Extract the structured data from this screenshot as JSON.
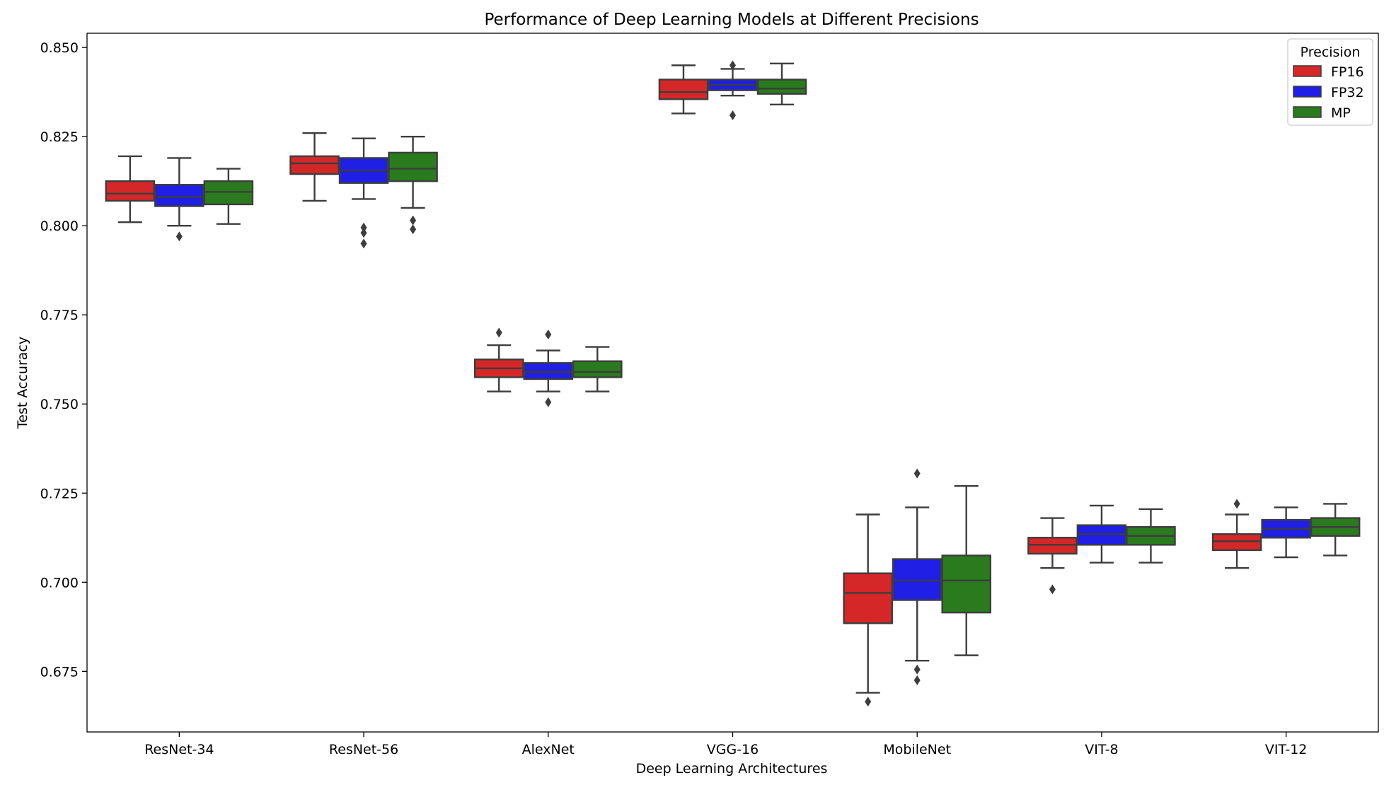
{
  "chart_data": {
    "type": "box",
    "title": "Performance of Deep Learning Models at Different Precisions",
    "xlabel": "Deep Learning Architectures",
    "ylabel": "Test Accuracy",
    "ylim": [
      0.658,
      0.854
    ],
    "yticks": [
      "0.675",
      "0.700",
      "0.725",
      "0.750",
      "0.775",
      "0.800",
      "0.825",
      "0.850"
    ],
    "categories": [
      "ResNet-34",
      "ResNet-56",
      "AlexNet",
      "VGG-16",
      "MobileNet",
      "VIT-8",
      "VIT-12"
    ],
    "legend": {
      "title": "Precision",
      "placement": "top-right",
      "entries": [
        "FP16",
        "FP32",
        "MP"
      ]
    },
    "series": [
      {
        "name": "FP16",
        "color": "#d62728",
        "boxes": [
          {
            "whislo": 0.801,
            "q1": 0.807,
            "med": 0.809,
            "q3": 0.8125,
            "whishi": 0.8195,
            "fliers": []
          },
          {
            "whislo": 0.807,
            "q1": 0.8145,
            "med": 0.8175,
            "q3": 0.8195,
            "whishi": 0.826,
            "fliers": []
          },
          {
            "whislo": 0.7535,
            "q1": 0.7575,
            "med": 0.76,
            "q3": 0.7625,
            "whishi": 0.7665,
            "fliers": [
              0.77
            ]
          },
          {
            "whislo": 0.8315,
            "q1": 0.8355,
            "med": 0.8375,
            "q3": 0.841,
            "whishi": 0.845,
            "fliers": []
          },
          {
            "whislo": 0.669,
            "q1": 0.6885,
            "med": 0.697,
            "q3": 0.7025,
            "whishi": 0.719,
            "fliers": [
              0.6665
            ]
          },
          {
            "whislo": 0.704,
            "q1": 0.708,
            "med": 0.7105,
            "q3": 0.7125,
            "whishi": 0.718,
            "fliers": [
              0.698
            ]
          },
          {
            "whislo": 0.704,
            "q1": 0.709,
            "med": 0.7115,
            "q3": 0.7135,
            "whishi": 0.719,
            "fliers": [
              0.722
            ]
          }
        ]
      },
      {
        "name": "FP32",
        "color": "#1f1fe6",
        "boxes": [
          {
            "whislo": 0.8,
            "q1": 0.8055,
            "med": 0.808,
            "q3": 0.8115,
            "whishi": 0.819,
            "fliers": [
              0.797
            ]
          },
          {
            "whislo": 0.8075,
            "q1": 0.812,
            "med": 0.8155,
            "q3": 0.819,
            "whishi": 0.8245,
            "fliers": [
              0.7995,
              0.798,
              0.795
            ]
          },
          {
            "whislo": 0.7535,
            "q1": 0.757,
            "med": 0.759,
            "q3": 0.7615,
            "whishi": 0.765,
            "fliers": [
              0.7695,
              0.7505
            ]
          },
          {
            "whislo": 0.8365,
            "q1": 0.838,
            "med": 0.8395,
            "q3": 0.841,
            "whishi": 0.844,
            "fliers": [
              0.845,
              0.831
            ]
          },
          {
            "whislo": 0.678,
            "q1": 0.695,
            "med": 0.7005,
            "q3": 0.7065,
            "whishi": 0.721,
            "fliers": [
              0.7305,
              0.6755,
              0.6725
            ]
          },
          {
            "whislo": 0.7055,
            "q1": 0.7105,
            "med": 0.7135,
            "q3": 0.716,
            "whishi": 0.7215,
            "fliers": []
          },
          {
            "whislo": 0.707,
            "q1": 0.7125,
            "med": 0.715,
            "q3": 0.7175,
            "whishi": 0.721,
            "fliers": []
          }
        ]
      },
      {
        "name": "MP",
        "color": "#2a7a1e",
        "boxes": [
          {
            "whislo": 0.8005,
            "q1": 0.806,
            "med": 0.8095,
            "q3": 0.8125,
            "whishi": 0.816,
            "fliers": []
          },
          {
            "whislo": 0.805,
            "q1": 0.8125,
            "med": 0.816,
            "q3": 0.8205,
            "whishi": 0.825,
            "fliers": [
              0.8015,
              0.799
            ]
          },
          {
            "whislo": 0.7535,
            "q1": 0.7575,
            "med": 0.759,
            "q3": 0.762,
            "whishi": 0.766,
            "fliers": []
          },
          {
            "whislo": 0.834,
            "q1": 0.837,
            "med": 0.8385,
            "q3": 0.841,
            "whishi": 0.8455,
            "fliers": []
          },
          {
            "whislo": 0.6795,
            "q1": 0.6915,
            "med": 0.7005,
            "q3": 0.7075,
            "whishi": 0.727,
            "fliers": []
          },
          {
            "whislo": 0.7055,
            "q1": 0.7105,
            "med": 0.713,
            "q3": 0.7155,
            "whishi": 0.7205,
            "fliers": []
          },
          {
            "whislo": 0.7075,
            "q1": 0.713,
            "med": 0.7155,
            "q3": 0.718,
            "whishi": 0.722,
            "fliers": []
          }
        ]
      }
    ]
  }
}
